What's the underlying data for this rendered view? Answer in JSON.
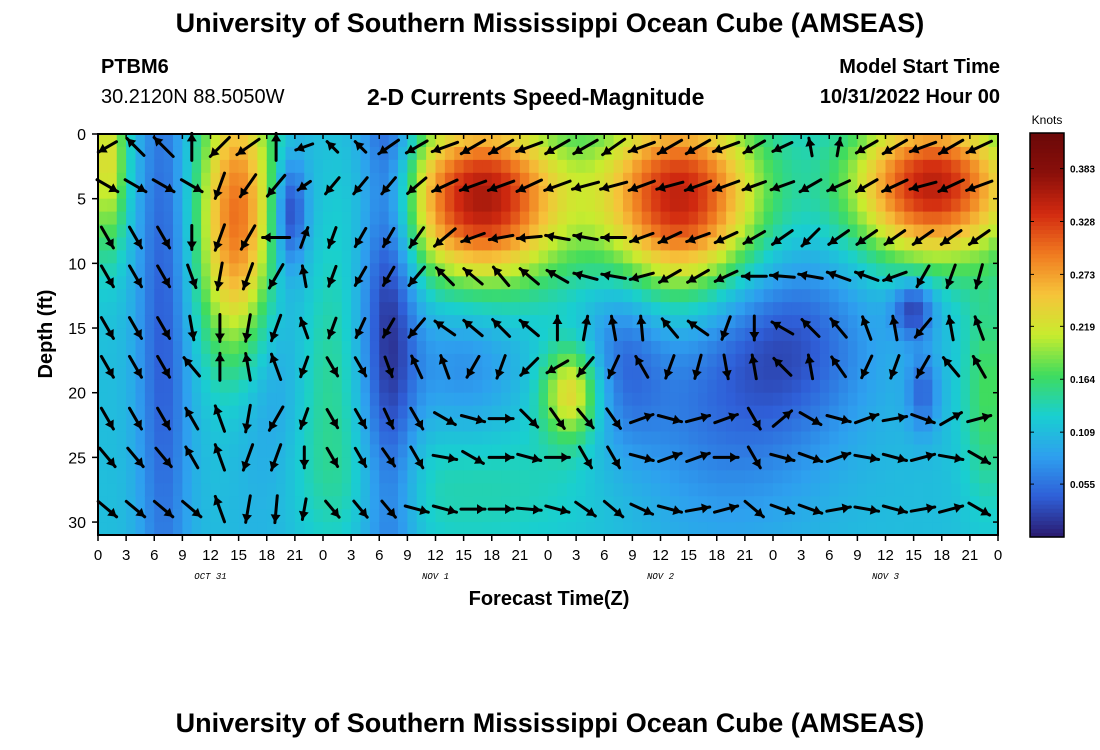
{
  "header": {
    "title": "University of Southern Mississippi Ocean Cube (AMSEAS)",
    "station_id": "PTBM6",
    "coordinates": "30.2120N  88.5050W",
    "plot_title": "2-D Currents Speed-Magnitude",
    "model_start_label": "Model Start Time",
    "model_start_value": "10/31/2022 Hour 00"
  },
  "footer": {
    "title": "University of Southern Mississippi Ocean Cube (AMSEAS)"
  },
  "chart_data": {
    "type": "heatmap",
    "title": "2-D Currents Speed-Magnitude",
    "xlabel": "Forecast Time(Z)",
    "ylabel": "Depth (ft)",
    "x_ticks": [
      "0",
      "3",
      "6",
      "9",
      "12",
      "15",
      "18",
      "21",
      "0",
      "3",
      "6",
      "9",
      "12",
      "15",
      "18",
      "21",
      "0",
      "3",
      "6",
      "9",
      "12",
      "15",
      "18",
      "21",
      "0",
      "3",
      "6",
      "9",
      "12",
      "15",
      "18",
      "21",
      "0"
    ],
    "x_hours": [
      0,
      3,
      6,
      9,
      12,
      15,
      18,
      21,
      24,
      27,
      30,
      33,
      36,
      39,
      42,
      45,
      48,
      51,
      54,
      57,
      60,
      63,
      66,
      69,
      72,
      75,
      78,
      81,
      84,
      87,
      90,
      93,
      96
    ],
    "date_labels": [
      {
        "label": "OCT 31",
        "hour": 12
      },
      {
        "label": "NOV 1",
        "hour": 36
      },
      {
        "label": "NOV 2",
        "hour": 60
      },
      {
        "label": "NOV 3",
        "hour": 84
      }
    ],
    "y_ticks": [
      0,
      5,
      10,
      15,
      20,
      25,
      30
    ],
    "ylim": [
      0,
      31
    ],
    "xlim": [
      0,
      96
    ],
    "colorbar": {
      "title": "Knots",
      "tick_values": [
        0.383,
        0.328,
        0.273,
        0.219,
        0.164,
        0.109,
        0.055
      ],
      "tick_labels": [
        "0.383",
        "0.328",
        "0.273",
        "0.219",
        "0.164",
        "0.109",
        "0.055"
      ],
      "range": [
        0.0,
        0.42
      ],
      "colors": [
        "#2a1a6e",
        "#2f5fd8",
        "#2ea0ef",
        "#19cfd0",
        "#3fdc5e",
        "#c8ec2e",
        "#f6c43a",
        "#f07a20",
        "#d22a10",
        "#8a0f0a",
        "#6a0808"
      ]
    },
    "speed_blobs": [
      {
        "t": 15,
        "d": 7,
        "st": 3,
        "sd": 8,
        "a": 0.22
      },
      {
        "t": 1,
        "d": 2,
        "st": 1.5,
        "sd": 5,
        "a": 0.12
      },
      {
        "t": 18,
        "d": 15,
        "st": 4,
        "sd": 10,
        "a": -0.06
      },
      {
        "t": 7,
        "d": 15,
        "st": 2,
        "sd": 20,
        "a": -0.07
      },
      {
        "t": 20.5,
        "d": 6,
        "st": 1.2,
        "sd": 3,
        "a": -0.09
      },
      {
        "t": 24,
        "d": 18,
        "st": 3,
        "sd": 8,
        "a": 0.05
      },
      {
        "t": 31,
        "d": 10,
        "st": 2.2,
        "sd": 20,
        "a": -0.1
      },
      {
        "t": 41,
        "d": 5,
        "st": 6,
        "sd": 4.5,
        "a": 0.25
      },
      {
        "t": 62,
        "d": 5,
        "st": 6,
        "sd": 5,
        "a": 0.24
      },
      {
        "t": 89,
        "d": 4,
        "st": 6,
        "sd": 4,
        "a": 0.24
      },
      {
        "t": 39,
        "d": 18,
        "st": 4,
        "sd": 4,
        "a": -0.04
      },
      {
        "t": 50.5,
        "d": 20,
        "st": 2.2,
        "sd": 2.6,
        "a": 0.13
      },
      {
        "t": 66,
        "d": 22,
        "st": 8,
        "sd": 7,
        "a": -0.05
      },
      {
        "t": 56,
        "d": 17,
        "st": 3,
        "sd": 5,
        "a": -0.05
      },
      {
        "t": 74,
        "d": 16,
        "st": 6,
        "sd": 5,
        "a": -0.06
      },
      {
        "t": 87,
        "d": 13.5,
        "st": 1.6,
        "sd": 1.6,
        "a": -0.09
      },
      {
        "t": 88,
        "d": 20,
        "st": 1.2,
        "sd": 2.2,
        "a": -0.06
      },
      {
        "t": 39,
        "d": 27,
        "st": 14,
        "sd": 4,
        "a": 0.03
      },
      {
        "t": 95,
        "d": 20,
        "st": 2,
        "sd": 6,
        "a": 0.06
      }
    ],
    "vector_times": [
      1,
      4,
      7,
      10,
      13,
      16,
      19,
      22,
      25,
      28,
      31,
      34,
      37,
      40,
      43,
      46,
      49,
      52,
      55,
      58,
      61,
      64,
      67,
      70,
      73,
      76,
      79,
      82,
      85,
      88,
      91,
      94
    ],
    "vector_depths": [
      1,
      4,
      8,
      11,
      15,
      18,
      22,
      25,
      29
    ],
    "vector_angles_deg": [
      [
        210,
        135,
        135,
        90,
        225,
        215,
        90,
        200,
        135,
        135,
        215,
        210,
        200,
        210,
        210,
        200,
        210,
        210,
        215,
        200,
        210,
        210,
        200,
        210,
        205,
        100,
        80,
        210,
        210,
        200,
        210,
        205
      ],
      [
        330,
        330,
        330,
        330,
        250,
        235,
        230,
        215,
        230,
        230,
        230,
        220,
        205,
        200,
        200,
        205,
        200,
        195,
        195,
        200,
        195,
        200,
        200,
        200,
        200,
        210,
        205,
        210,
        205,
        195,
        205,
        200
      ],
      [
        300,
        300,
        300,
        270,
        250,
        240,
        180,
        70,
        250,
        240,
        240,
        235,
        220,
        200,
        190,
        185,
        170,
        170,
        180,
        200,
        205,
        200,
        205,
        210,
        215,
        225,
        215,
        215,
        215,
        215,
        215,
        215
      ],
      [
        300,
        300,
        300,
        290,
        260,
        250,
        240,
        100,
        250,
        240,
        240,
        230,
        135,
        140,
        130,
        140,
        150,
        165,
        170,
        195,
        210,
        210,
        205,
        180,
        175,
        170,
        160,
        160,
        200,
        240,
        250,
        255
      ],
      [
        300,
        300,
        300,
        280,
        270,
        260,
        250,
        110,
        250,
        245,
        240,
        230,
        145,
        140,
        135,
        140,
        90,
        80,
        100,
        95,
        130,
        145,
        250,
        270,
        150,
        135,
        130,
        110,
        100,
        230,
        100,
        110
      ],
      [
        300,
        300,
        300,
        130,
        90,
        100,
        110,
        250,
        300,
        300,
        290,
        115,
        110,
        240,
        250,
        225,
        210,
        230,
        245,
        120,
        250,
        255,
        280,
        100,
        135,
        100,
        125,
        245,
        250,
        240,
        130,
        120
      ],
      [
        300,
        300,
        300,
        120,
        110,
        260,
        240,
        250,
        300,
        300,
        295,
        300,
        330,
        345,
        0,
        315,
        305,
        310,
        305,
        20,
        345,
        15,
        20,
        300,
        40,
        330,
        345,
        20,
        10,
        340,
        30,
        15
      ],
      [
        310,
        310,
        310,
        120,
        110,
        250,
        250,
        270,
        300,
        300,
        305,
        300,
        350,
        330,
        0,
        345,
        0,
        300,
        300,
        345,
        20,
        20,
        0,
        300,
        345,
        340,
        20,
        350,
        345,
        15,
        350,
        330
      ],
      [
        320,
        320,
        320,
        320,
        110,
        260,
        265,
        260,
        310,
        310,
        310,
        345,
        345,
        0,
        0,
        355,
        345,
        325,
        320,
        335,
        345,
        10,
        15,
        320,
        340,
        340,
        10,
        350,
        345,
        10,
        15,
        330
      ]
    ],
    "vector_lengths": [
      [
        0.7,
        0.8,
        0.9,
        0.9,
        0.9,
        0.9,
        0.9,
        0.6,
        0.5,
        0.5,
        0.8,
        0.8,
        0.9,
        0.9,
        0.9,
        0.9,
        0.9,
        0.9,
        0.9,
        0.9,
        0.9,
        0.9,
        0.9,
        0.8,
        0.7,
        0.6,
        0.6,
        0.8,
        0.9,
        0.9,
        0.9,
        0.9
      ],
      [
        0.8,
        0.8,
        0.8,
        0.8,
        0.9,
        0.9,
        0.9,
        0.5,
        0.7,
        0.7,
        0.7,
        0.8,
        0.9,
        0.9,
        0.9,
        0.9,
        0.9,
        0.9,
        0.9,
        0.9,
        0.9,
        0.9,
        0.9,
        0.8,
        0.8,
        0.8,
        0.8,
        0.8,
        0.9,
        0.9,
        0.9,
        0.9
      ],
      [
        0.8,
        0.8,
        0.8,
        0.8,
        0.9,
        0.9,
        0.9,
        0.7,
        0.7,
        0.7,
        0.7,
        0.8,
        0.9,
        0.8,
        0.8,
        0.8,
        0.8,
        0.8,
        0.8,
        0.8,
        0.8,
        0.8,
        0.8,
        0.8,
        0.8,
        0.8,
        0.8,
        0.8,
        0.8,
        0.8,
        0.8,
        0.8
      ],
      [
        0.8,
        0.8,
        0.8,
        0.8,
        0.9,
        0.9,
        0.9,
        0.7,
        0.7,
        0.7,
        0.7,
        0.8,
        0.8,
        0.8,
        0.8,
        0.8,
        0.8,
        0.8,
        0.8,
        0.8,
        0.8,
        0.8,
        0.8,
        0.8,
        0.8,
        0.8,
        0.8,
        0.8,
        0.8,
        0.8,
        0.8,
        0.8
      ],
      [
        0.8,
        0.8,
        0.8,
        0.8,
        0.9,
        0.9,
        0.9,
        0.7,
        0.7,
        0.7,
        0.7,
        0.8,
        0.8,
        0.8,
        0.8,
        0.8,
        0.8,
        0.8,
        0.8,
        0.8,
        0.8,
        0.8,
        0.8,
        0.8,
        0.8,
        0.8,
        0.8,
        0.8,
        0.8,
        0.8,
        0.8,
        0.8
      ],
      [
        0.8,
        0.8,
        0.8,
        0.8,
        0.9,
        0.9,
        0.9,
        0.7,
        0.7,
        0.7,
        0.7,
        0.8,
        0.8,
        0.8,
        0.8,
        0.8,
        0.8,
        0.8,
        0.8,
        0.8,
        0.8,
        0.8,
        0.8,
        0.8,
        0.8,
        0.8,
        0.8,
        0.8,
        0.8,
        0.8,
        0.8,
        0.8
      ],
      [
        0.8,
        0.8,
        0.8,
        0.8,
        0.9,
        0.9,
        0.9,
        0.7,
        0.7,
        0.7,
        0.7,
        0.8,
        0.8,
        0.8,
        0.8,
        0.8,
        0.8,
        0.8,
        0.8,
        0.8,
        0.8,
        0.8,
        0.8,
        0.8,
        0.8,
        0.8,
        0.8,
        0.8,
        0.8,
        0.8,
        0.8,
        0.8
      ],
      [
        0.8,
        0.8,
        0.8,
        0.8,
        0.9,
        0.9,
        0.9,
        0.7,
        0.7,
        0.7,
        0.7,
        0.8,
        0.8,
        0.8,
        0.8,
        0.8,
        0.8,
        0.8,
        0.8,
        0.8,
        0.8,
        0.8,
        0.8,
        0.8,
        0.8,
        0.8,
        0.8,
        0.8,
        0.8,
        0.8,
        0.8,
        0.8
      ],
      [
        0.8,
        0.8,
        0.8,
        0.8,
        0.9,
        0.9,
        0.9,
        0.7,
        0.7,
        0.7,
        0.7,
        0.8,
        0.8,
        0.8,
        0.8,
        0.8,
        0.8,
        0.8,
        0.8,
        0.8,
        0.8,
        0.8,
        0.8,
        0.8,
        0.8,
        0.8,
        0.8,
        0.8,
        0.8,
        0.8,
        0.8,
        0.8
      ]
    ]
  }
}
